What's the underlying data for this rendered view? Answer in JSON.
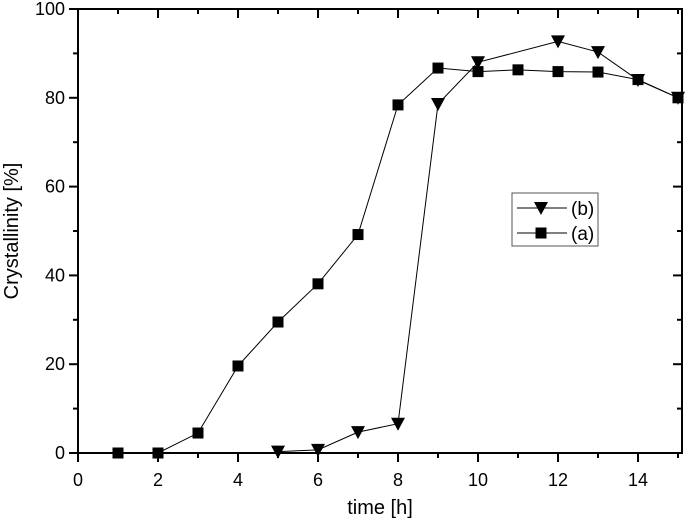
{
  "chart_data": {
    "type": "line",
    "title": "",
    "xlabel": "time [h]",
    "ylabel": "Crystallinity [%]",
    "xlim": [
      0,
      15
    ],
    "ylim": [
      0,
      100
    ],
    "x_ticks": [
      0,
      2,
      4,
      6,
      8,
      10,
      12,
      14
    ],
    "y_ticks": [
      0,
      20,
      40,
      60,
      80,
      100
    ],
    "x_minor_step": 1,
    "y_minor_step": 10,
    "grid": false,
    "legend_position": "right-center",
    "series": [
      {
        "name": "(b)",
        "marker": "triangle-down",
        "color": "#000000",
        "x": [
          5,
          6,
          7,
          8,
          9,
          10,
          12,
          13,
          14,
          15
        ],
        "y": [
          0.3,
          0.7,
          4.7,
          6.6,
          78.6,
          88.0,
          92.7,
          90.3,
          84.0,
          80.0
        ]
      },
      {
        "name": "(a)",
        "marker": "square",
        "color": "#000000",
        "x": [
          1,
          2,
          3,
          4,
          5,
          6,
          7,
          8,
          9,
          10,
          11,
          12,
          13,
          14,
          15
        ],
        "y": [
          0,
          0,
          4.5,
          19.6,
          29.5,
          38.1,
          49.2,
          78.4,
          86.7,
          85.9,
          86.3,
          85.9,
          85.8,
          84.1,
          80.0
        ]
      }
    ]
  }
}
